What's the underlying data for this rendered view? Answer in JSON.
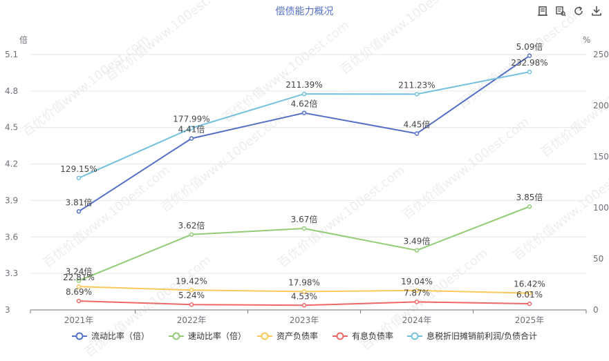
{
  "toolbox": {
    "icons": [
      "data-view-icon",
      "zoom-icon",
      "restore-icon",
      "download-icon"
    ]
  },
  "watermark_text": "百优价值www.100est.com",
  "chart_data": {
    "type": "line",
    "title": "偿债能力概况",
    "categories": [
      "2021年",
      "2022年",
      "2023年",
      "2024年",
      "2025年"
    ],
    "y_left": {
      "unit_label": "倍",
      "ylim": [
        3,
        5.1
      ],
      "ticks": [
        "3",
        "3.3",
        "3.6",
        "3.9",
        "4.2",
        "4.5",
        "4.8",
        "5.1"
      ]
    },
    "y_right": {
      "unit_label": "%",
      "ylim": [
        0,
        250
      ],
      "ticks": [
        "0",
        "50",
        "100",
        "150",
        "200",
        "250"
      ]
    },
    "grid": true,
    "legend_position": "bottom",
    "series": [
      {
        "name": "流动比率（倍）",
        "axis": "left",
        "color": "#5470c6",
        "values": [
          3.81,
          4.41,
          4.62,
          4.45,
          5.09
        ],
        "labels": [
          "3.81倍",
          "4.41倍",
          "4.62倍",
          "4.45倍",
          "5.09倍"
        ]
      },
      {
        "name": "速动比率（倍）",
        "axis": "left",
        "color": "#91cc75",
        "values": [
          3.24,
          3.62,
          3.67,
          3.49,
          3.85
        ],
        "labels": [
          "3.24倍",
          "3.62倍",
          "3.67倍",
          "3.49倍",
          "3.85倍"
        ]
      },
      {
        "name": "资产负债率",
        "axis": "right",
        "color": "#fac858",
        "values": [
          22.81,
          19.42,
          17.98,
          19.04,
          16.42
        ],
        "labels": [
          "22.81%",
          "19.42%",
          "17.98%",
          "19.04%",
          "16.42%"
        ]
      },
      {
        "name": "有息负债率",
        "axis": "right",
        "color": "#ee6666",
        "values": [
          8.69,
          5.24,
          4.53,
          7.87,
          6.01
        ],
        "labels": [
          "8.69%",
          "5.24%",
          "4.53%",
          "7.87%",
          "6.01%"
        ]
      },
      {
        "name": "息税折旧摊销前利润/负债合计",
        "axis": "right",
        "color": "#73c0de",
        "values": [
          129.15,
          177.99,
          211.39,
          211.23,
          232.98
        ],
        "labels": [
          "129.15%",
          "177.99%",
          "211.39%",
          "211.23%",
          "232.98%"
        ]
      }
    ]
  }
}
